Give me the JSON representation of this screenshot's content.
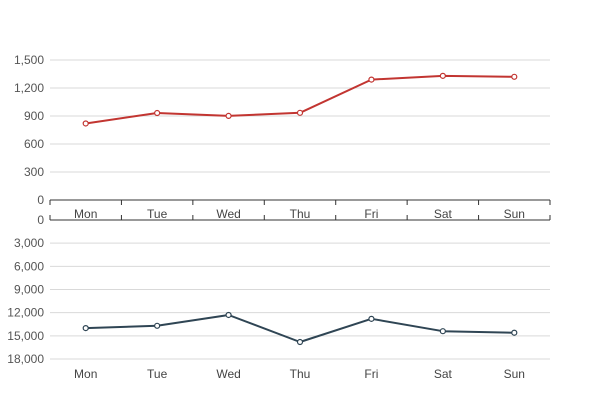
{
  "chart_data": [
    {
      "type": "line",
      "categories": [
        "Mon",
        "Tue",
        "Wed",
        "Thu",
        "Fri",
        "Sat",
        "Sun"
      ],
      "series": [
        {
          "values": [
            820,
            932,
            901,
            934,
            1290,
            1330,
            1320
          ],
          "color": "#c23531"
        }
      ],
      "ylim": [
        0,
        1500
      ],
      "yticks": [
        "0",
        "300",
        "600",
        "900",
        "1,200",
        "1,500"
      ],
      "grid": true,
      "markers": "hollow-circle"
    },
    {
      "type": "line",
      "categories": [
        "Mon",
        "Tue",
        "Wed",
        "Thu",
        "Fri",
        "Sat",
        "Sun"
      ],
      "series": [
        {
          "values": [
            14000,
            13700,
            12300,
            15800,
            12800,
            14400,
            14600
          ],
          "color": "#2f4554"
        }
      ],
      "ylim": [
        0,
        18000
      ],
      "y_inverted": true,
      "yticks": [
        "0",
        "3,000",
        "6,000",
        "9,000",
        "12,000",
        "15,000",
        "18,000"
      ],
      "grid": true,
      "markers": "hollow-circle"
    }
  ]
}
